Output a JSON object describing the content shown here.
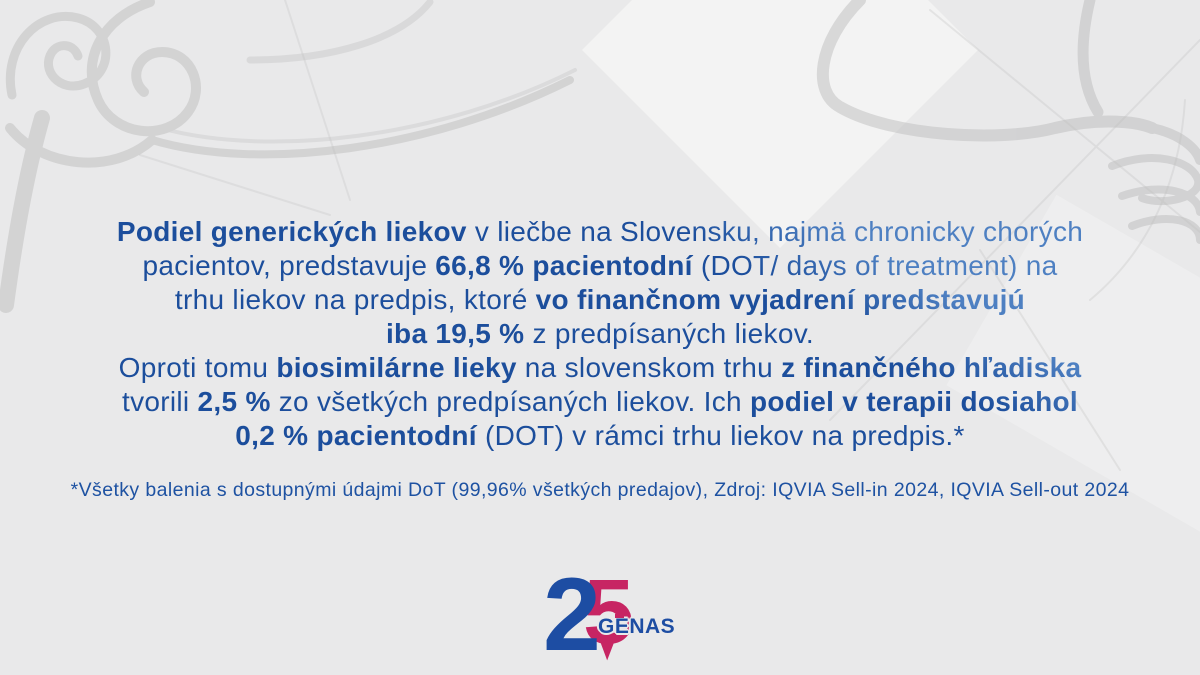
{
  "colors": {
    "background": "#e9e9ea",
    "text_dark_blue": "#1c4e9c",
    "text_light_blue": "#4e80c2",
    "footnote_blue": "#1e52a2",
    "logo_blue": "#1d4da3",
    "logo_pink": "#c72563",
    "sketch_gray": "#bdbdbd"
  },
  "statement": {
    "lines": [
      {
        "segments": [
          {
            "text": "Podiel generických liekov",
            "bold": true
          },
          {
            "text": " v liečbe na Slovensku, najmä chronicky chorých",
            "bold": false
          }
        ]
      },
      {
        "segments": [
          {
            "text": "pacientov, predstavuje ",
            "bold": false
          },
          {
            "text": "66,8 % pacientodní",
            "bold": true
          },
          {
            "text": " (DOT/ days of treatment) na",
            "bold": false
          }
        ]
      },
      {
        "segments": [
          {
            "text": "trhu liekov na predpis, ktoré ",
            "bold": false
          },
          {
            "text": "vo finančnom vyjadrení predstavujú",
            "bold": true
          }
        ]
      },
      {
        "segments": [
          {
            "text": "iba 19,5 %",
            "bold": true
          },
          {
            "text": " z predpísaných liekov.",
            "bold": false
          }
        ]
      },
      {
        "segments": [
          {
            "text": "Oproti tomu ",
            "bold": false
          },
          {
            "text": "biosimilárne lieky",
            "bold": true
          },
          {
            "text": " na slovenskom trhu ",
            "bold": false
          },
          {
            "text": "z finančného hľadiska",
            "bold": true
          }
        ]
      },
      {
        "segments": [
          {
            "text": "tvorili ",
            "bold": false
          },
          {
            "text": "2,5 %",
            "bold": true
          },
          {
            "text": " zo všetkých predpísaných liekov. Ich ",
            "bold": false
          },
          {
            "text": "podiel v terapii dosiahol",
            "bold": true
          }
        ]
      },
      {
        "segments": [
          {
            "text": "0,2 % pacientodní",
            "bold": true
          },
          {
            "text": " (DOT) v rámci trhu liekov na predpis.*",
            "bold": false
          }
        ]
      }
    ]
  },
  "footnote": {
    "text": "*Všetky balenia s dostupnými údajmi DoT (99,96% všetkých predajov), Zdroj: IQVIA Sell-in 2024, IQVIA Sell-out 2024"
  },
  "logo": {
    "digit_2": "2",
    "digit_5": "5",
    "brand": "GENAS"
  }
}
